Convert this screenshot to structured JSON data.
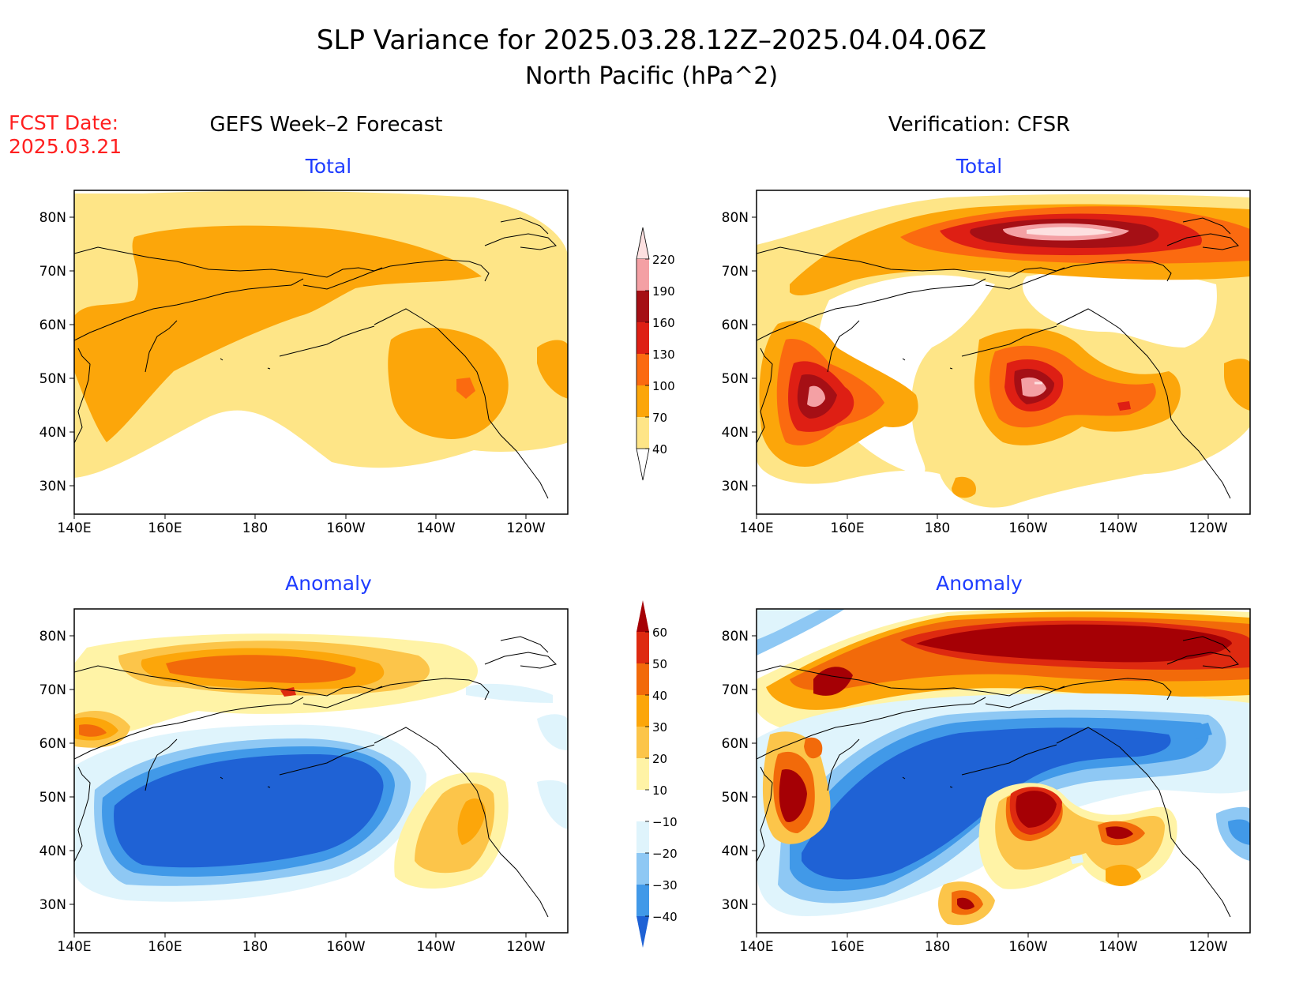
{
  "title": {
    "line1": "SLP Variance for 2025.03.28.12Z–2025.04.04.06Z",
    "line2": "North Pacific (hPa^2)"
  },
  "fcst_date": {
    "label": "FCST Date:",
    "value": "2025.03.21"
  },
  "columns": {
    "left": "GEFS Week–2 Forecast",
    "right": "Verification: CFSR"
  },
  "panel_titles": {
    "total": "Total",
    "anomaly": "Anomaly"
  },
  "axes": {
    "lat_labels": [
      "80N",
      "70N",
      "60N",
      "50N",
      "40N",
      "30N"
    ],
    "lon_labels": [
      "140E",
      "160E",
      "180",
      "160W",
      "140W",
      "120W"
    ]
  },
  "colorbars": {
    "total": {
      "labels": [
        "220",
        "190",
        "160",
        "130",
        "100",
        "70",
        "40"
      ],
      "colors": [
        "#fde0e0",
        "#f4a0a4",
        "#a50f15",
        "#de1f14",
        "#fb6a10",
        "#fca60a",
        "#fee587",
        "#ffffff"
      ]
    },
    "anomaly": {
      "labels": [
        "60",
        "50",
        "40",
        "30",
        "20",
        "10",
        "−10",
        "−20",
        "−30",
        "−40"
      ],
      "colors": [
        "#a50005",
        "#de2a10",
        "#f26a0a",
        "#fca60a",
        "#fcc54a",
        "#fff3a6",
        "#ffffff",
        "#dff4fc",
        "#8ec8f4",
        "#4199e8",
        "#1f62d5"
      ]
    }
  },
  "colors": {
    "title_text": "#000000",
    "fcst_text": "#ff2020",
    "panel_title_text": "#1e3cff"
  }
}
